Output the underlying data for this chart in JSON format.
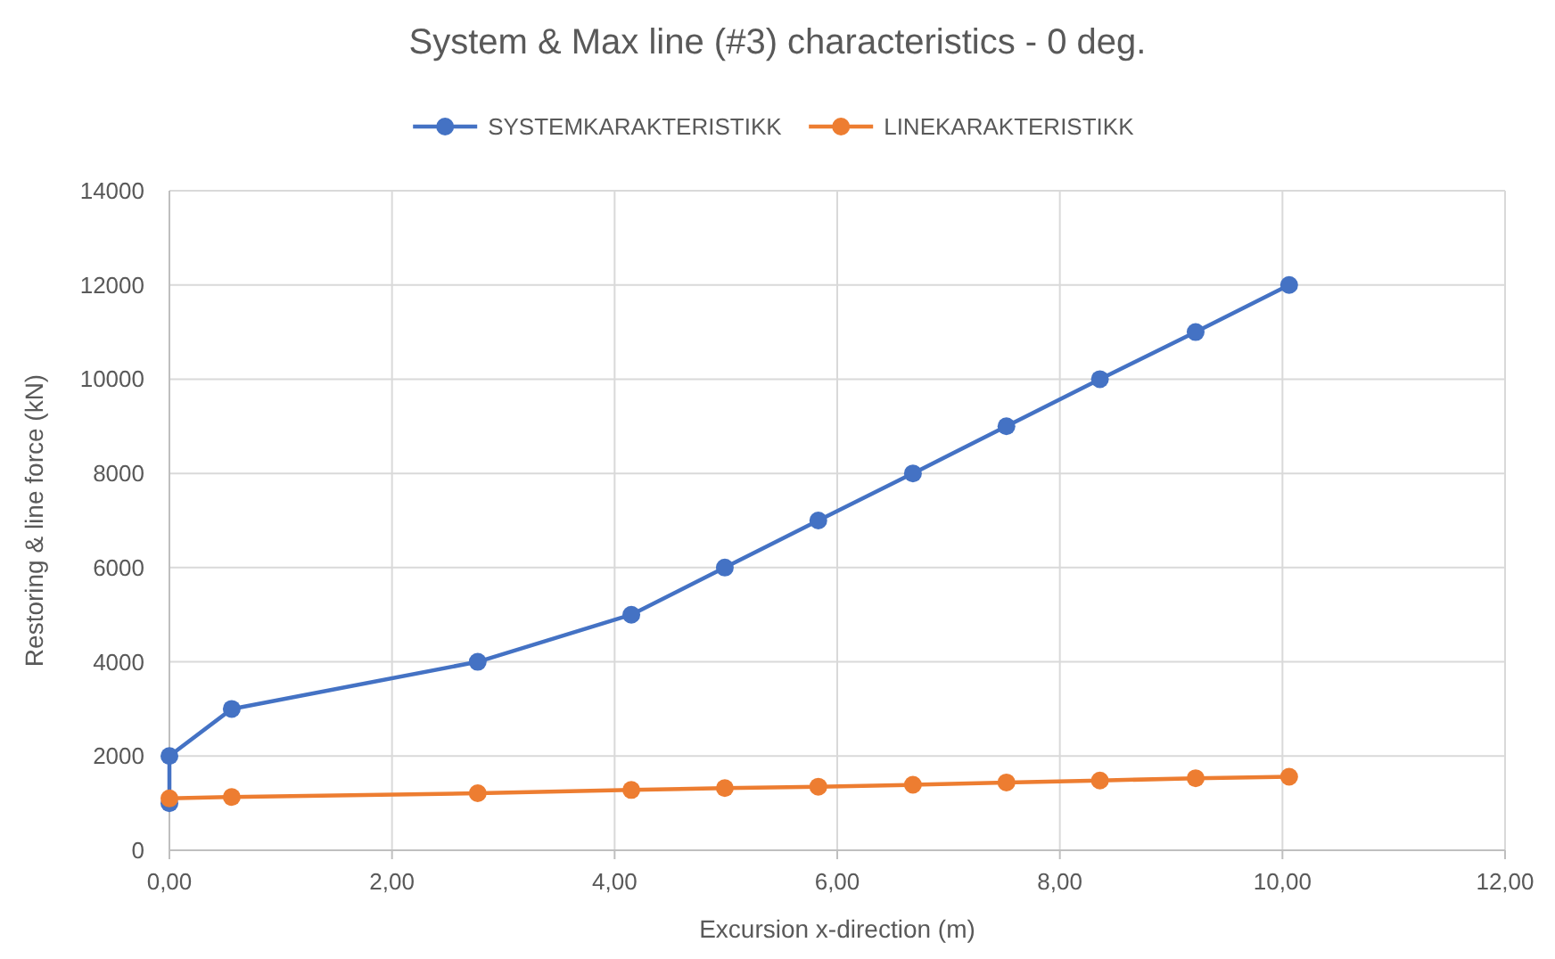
{
  "chart_data": {
    "type": "line",
    "title": "System & Max line (#3) characteristics - 0 deg.",
    "xlabel": "Excursion x-direction (m)",
    "ylabel": "Restoring & line force (kN)",
    "xlim": [
      0,
      12
    ],
    "xticks": [
      {
        "value": 0,
        "label": "0,00"
      },
      {
        "value": 2,
        "label": "2,00"
      },
      {
        "value": 4,
        "label": "4,00"
      },
      {
        "value": 6,
        "label": "6,00"
      },
      {
        "value": 8,
        "label": "8,00"
      },
      {
        "value": 10,
        "label": "10,00"
      },
      {
        "value": 12,
        "label": "12,00"
      }
    ],
    "ylim": [
      0,
      14000
    ],
    "yticks": [
      0,
      2000,
      4000,
      6000,
      8000,
      10000,
      12000,
      14000
    ],
    "grid": true,
    "legend": "top",
    "marker": "circle",
    "line_style": "solid",
    "series": [
      {
        "name": "SYSTEMKARAKTERISTIKK",
        "color": "#4472c4",
        "x": [
          0,
          0,
          0.56,
          2.77,
          4.15,
          4.99,
          5.83,
          6.68,
          7.52,
          8.36,
          9.22,
          10.06
        ],
        "values": [
          1000,
          2000,
          3000,
          4000,
          5000,
          6000,
          7000,
          8000,
          9000,
          10000,
          11000,
          12000
        ]
      },
      {
        "name": "LINEKARAKTERISTIKK",
        "color": "#ed7d31",
        "x": [
          0,
          0.56,
          2.77,
          4.15,
          4.99,
          5.83,
          6.68,
          7.52,
          8.36,
          9.22,
          10.06
        ],
        "values": [
          1100,
          1130,
          1210,
          1280,
          1320,
          1350,
          1390,
          1440,
          1480,
          1530,
          1560
        ]
      }
    ]
  }
}
